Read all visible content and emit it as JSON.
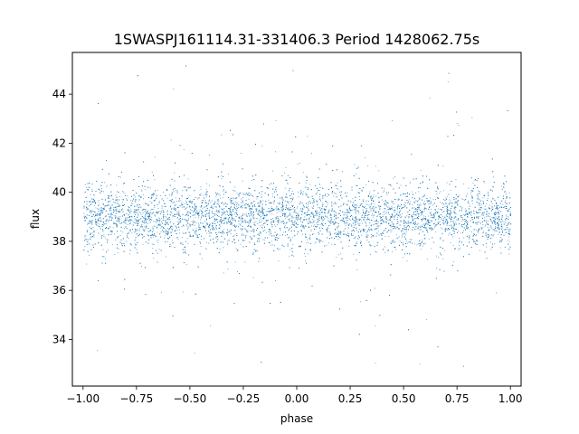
{
  "chart_data": {
    "type": "scatter",
    "title": "1SWASPJ161114.31-331406.3 Period 1428062.75s",
    "xlabel": "phase",
    "ylabel": "flux",
    "xlim": [
      -1.05,
      1.05
    ],
    "ylim": [
      32.1,
      45.7
    ],
    "xticks": [
      -1.0,
      -0.75,
      -0.5,
      -0.25,
      0.0,
      0.25,
      0.5,
      0.75,
      1.0
    ],
    "xtick_labels": [
      "−1.00",
      "−0.75",
      "−0.50",
      "−0.25",
      "0.00",
      "0.25",
      "0.50",
      "0.75",
      "1.00"
    ],
    "yticks": [
      34,
      36,
      38,
      40,
      42,
      44
    ],
    "ytick_labels": [
      "34",
      "36",
      "38",
      "40",
      "42",
      "44"
    ],
    "grid": false,
    "marker_color": "#1f77b4",
    "series": [
      {
        "x_range": [
          -1.0,
          1.0
        ],
        "median_flux": 39.0,
        "core_range": [
          37.8,
          40.5
        ],
        "outlier_range": [
          32.8,
          45.3
        ],
        "point_count": 9000
      }
    ]
  }
}
